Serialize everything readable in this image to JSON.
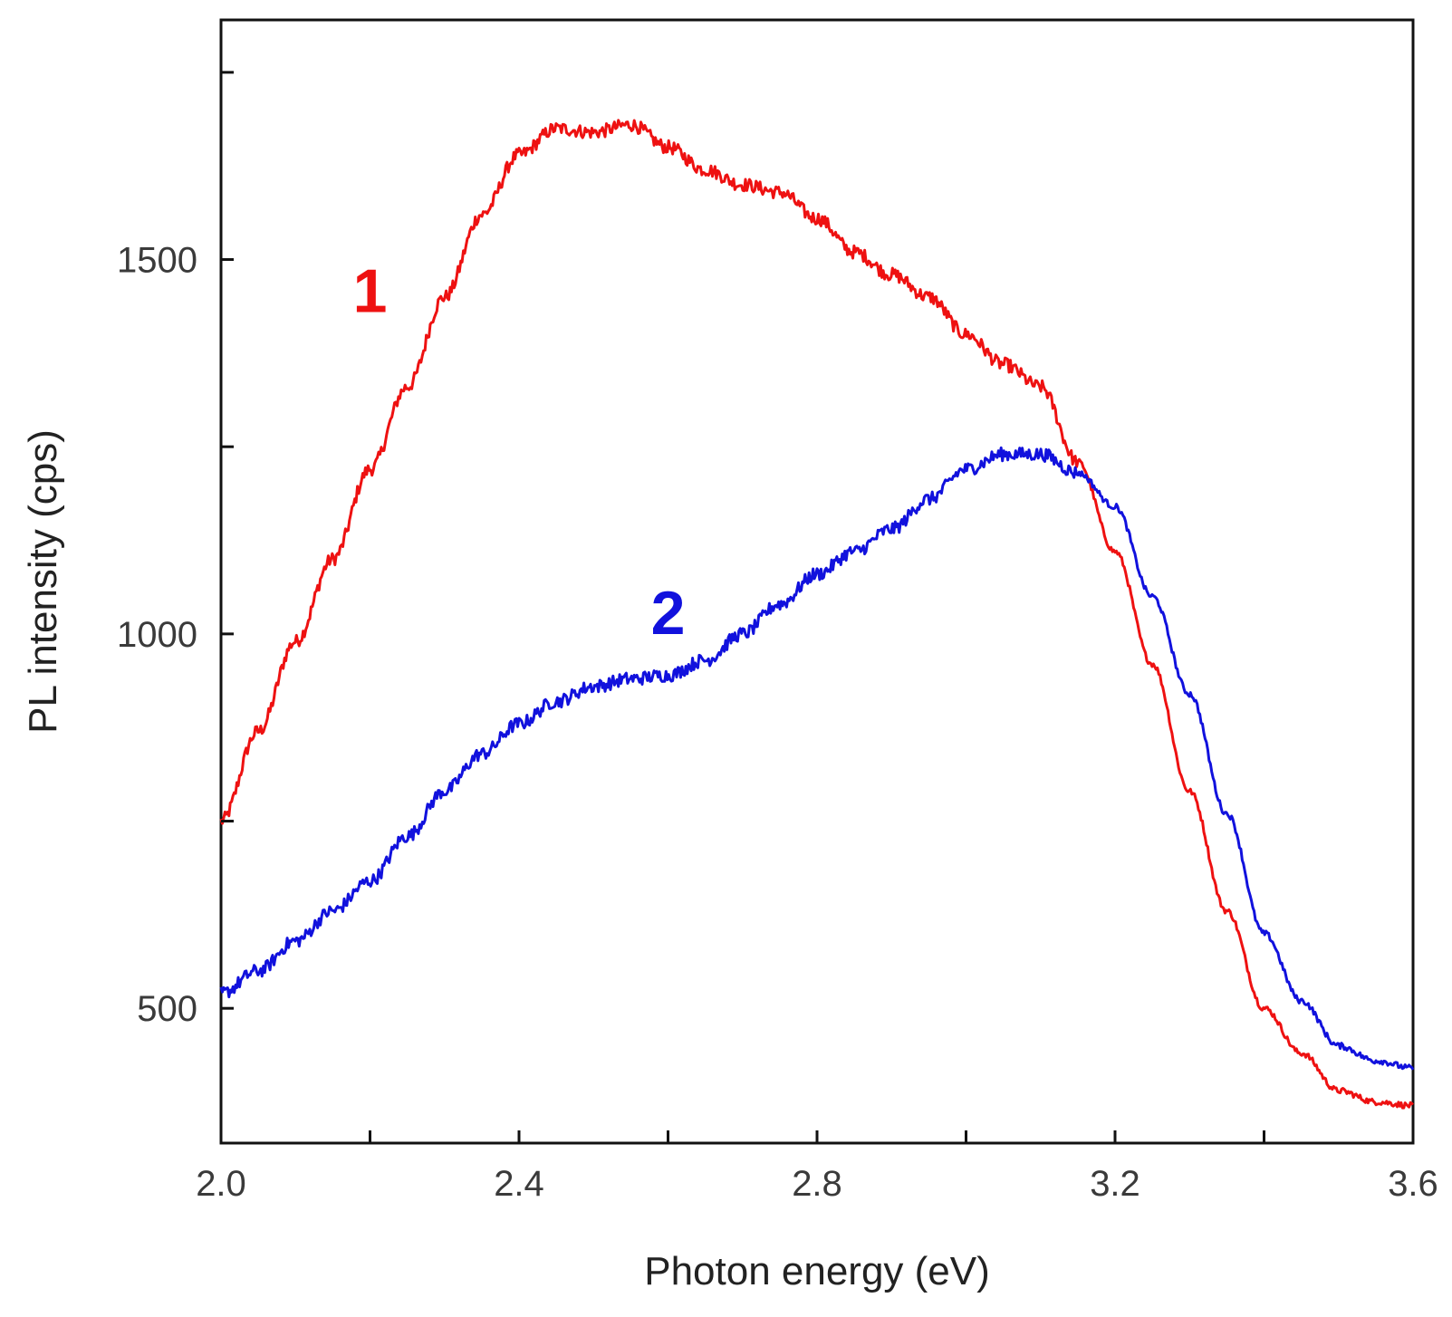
{
  "chart_data": {
    "type": "line",
    "title": "",
    "xlabel": "Photon energy (eV)",
    "ylabel": "PL intensity (cps)",
    "xlim": [
      2.0,
      3.6
    ],
    "ylim": [
      320,
      1820
    ],
    "x_ticks": [
      2.0,
      2.2,
      2.4,
      2.6,
      2.8,
      3.0,
      3.2,
      3.4,
      3.6
    ],
    "x_tick_labels": [
      "2.0",
      "",
      "2.4",
      "",
      "2.8",
      "",
      "3.2",
      "",
      "3.6"
    ],
    "y_ticks": [
      500,
      750,
      1000,
      1250,
      1500,
      1750
    ],
    "y_tick_labels": [
      "500",
      "",
      "1000",
      "",
      "1500",
      ""
    ],
    "grid": false,
    "legend": "none",
    "series": [
      {
        "label": "1",
        "color": "#ee1111",
        "label_at": [
          2.2,
          1430
        ],
        "x": [
          2.0,
          2.05,
          2.1,
          2.15,
          2.2,
          2.25,
          2.3,
          2.35,
          2.4,
          2.45,
          2.5,
          2.55,
          2.6,
          2.65,
          2.7,
          2.75,
          2.8,
          2.85,
          2.9,
          2.95,
          3.0,
          3.05,
          3.1,
          3.15,
          3.2,
          3.25,
          3.3,
          3.35,
          3.4,
          3.45,
          3.5,
          3.55,
          3.6
        ],
        "y": [
          750,
          870,
          990,
          1100,
          1220,
          1330,
          1450,
          1560,
          1640,
          1675,
          1670,
          1680,
          1650,
          1620,
          1600,
          1590,
          1555,
          1510,
          1480,
          1450,
          1400,
          1360,
          1330,
          1230,
          1110,
          960,
          790,
          630,
          500,
          440,
          390,
          375,
          370
        ]
      },
      {
        "label": "2",
        "color": "#1111dd",
        "label_at": [
          2.6,
          1000
        ],
        "x": [
          2.0,
          2.05,
          2.1,
          2.15,
          2.2,
          2.25,
          2.3,
          2.35,
          2.4,
          2.45,
          2.5,
          2.55,
          2.6,
          2.65,
          2.7,
          2.75,
          2.8,
          2.85,
          2.9,
          2.95,
          3.0,
          3.05,
          3.1,
          3.15,
          3.2,
          3.25,
          3.3,
          3.35,
          3.4,
          3.45,
          3.5,
          3.55,
          3.6
        ],
        "y": [
          520,
          550,
          590,
          630,
          670,
          730,
          790,
          840,
          880,
          910,
          930,
          940,
          945,
          965,
          1000,
          1040,
          1080,
          1110,
          1140,
          1180,
          1220,
          1240,
          1240,
          1215,
          1170,
          1050,
          920,
          760,
          600,
          510,
          450,
          430,
          420
        ]
      }
    ]
  }
}
